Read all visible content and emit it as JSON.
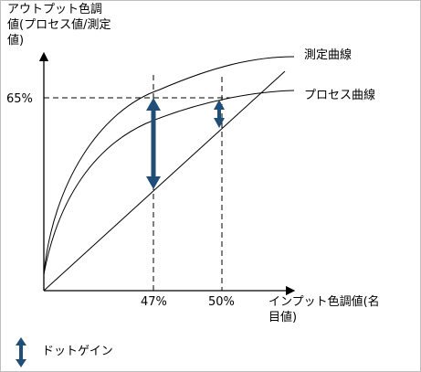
{
  "chart_data": {
    "type": "line",
    "y_axis_label_lines": [
      "アウトプット色調",
      "値(プロセス値/測定",
      "値)"
    ],
    "x_axis_label_lines": [
      "インプット色調値(名",
      "目値)"
    ],
    "y_tick": "65%",
    "x_ticks": [
      "47%",
      "50%"
    ],
    "curves": [
      {
        "name": "測定曲線"
      },
      {
        "name": "プロセス曲線"
      }
    ],
    "legend": {
      "label": "ドットゲイン",
      "icon": "double-arrow-icon"
    },
    "colors": {
      "arrow": "#1f4e79",
      "line": "#000000"
    }
  }
}
